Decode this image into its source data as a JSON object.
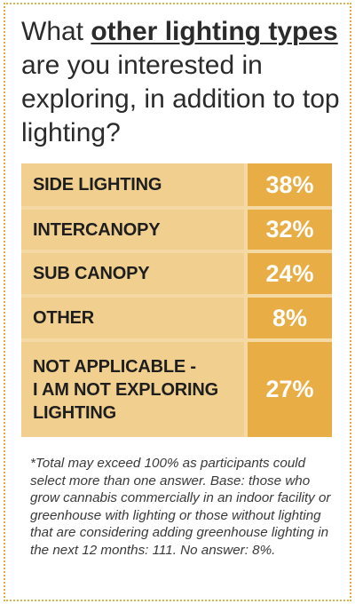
{
  "question": {
    "before": "What ",
    "highlight": "other lighting types",
    "after": " are you interested in exploring, in addition to top lighting?"
  },
  "chart_data": {
    "type": "table",
    "categories": [
      "SIDE LIGHTING",
      "INTERCANOPY",
      "SUB CANOPY",
      "OTHER",
      "NOT APPLICABLE -\nI AM NOT EXPLORING\nLIGHTING"
    ],
    "values": [
      38,
      32,
      24,
      8,
      27
    ],
    "value_labels": [
      "38%",
      "32%",
      "24%",
      "8%",
      "27%"
    ],
    "unit": "%"
  },
  "footnote": "*Total may exceed 100% as participants could select more than one answer. Base: those who grow cannabis commercially in an indoor facility or greenhouse with lighting or those without lighting that are considering adding greenhouse lighting in the next 12 months: 111. No answer: 8%.",
  "colors": {
    "border": "#e0b050",
    "label_bg": "#f1cf8f",
    "value_bg": "#e8ad44",
    "value_text": "#ffffff"
  }
}
